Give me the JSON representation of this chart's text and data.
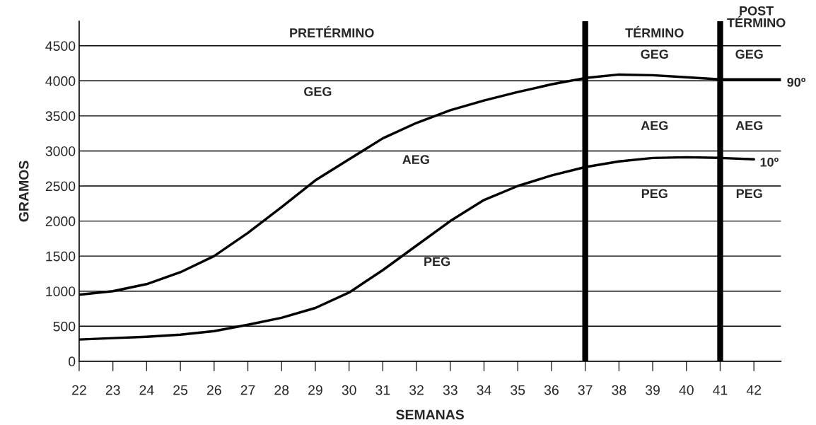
{
  "chart_data": {
    "type": "line",
    "xlabel": "SEMANAS",
    "ylabel": "GRAMOS",
    "x": [
      22,
      23,
      24,
      25,
      26,
      27,
      28,
      29,
      30,
      31,
      32,
      33,
      34,
      35,
      36,
      37,
      38,
      39,
      40,
      41,
      42,
      42.8
    ],
    "series": [
      {
        "name": "90º",
        "color": "#000000",
        "values": [
          950,
          1000,
          1100,
          1270,
          1500,
          1830,
          2200,
          2580,
          2880,
          3180,
          3400,
          3580,
          3720,
          3840,
          3950,
          4040,
          4090,
          4080,
          4050,
          4020,
          4020,
          4020
        ]
      },
      {
        "name": "10º",
        "color": "#000000",
        "values": [
          310,
          330,
          350,
          380,
          430,
          520,
          620,
          760,
          980,
          1300,
          1650,
          2000,
          2300,
          2500,
          2650,
          2770,
          2850,
          2900,
          2910,
          2900,
          2880,
          null
        ]
      }
    ],
    "xlim": [
      22,
      42.8
    ],
    "ylim": [
      0,
      4850
    ],
    "xticks": [
      22,
      23,
      24,
      25,
      26,
      27,
      28,
      29,
      30,
      31,
      32,
      33,
      34,
      35,
      36,
      37,
      38,
      39,
      40,
      41,
      42
    ],
    "yticks": [
      0,
      500,
      1000,
      1500,
      2000,
      2500,
      3000,
      3500,
      4000,
      4500
    ],
    "grid": "y",
    "legend": false,
    "marker": "none",
    "line_style": "solid",
    "ref_lines": [
      {
        "axis": "x",
        "value": 37,
        "color": "#000000"
      },
      {
        "axis": "x",
        "value": 41,
        "color": "#000000"
      }
    ],
    "annotations": [
      "PRETÉRMINO",
      "TÉRMINO",
      "POST\nTÉRMINO",
      "GEG",
      "AEG",
      "PEG",
      "GEG",
      "AEG",
      "PEG",
      "GEG",
      "AEG",
      "PEG"
    ]
  }
}
